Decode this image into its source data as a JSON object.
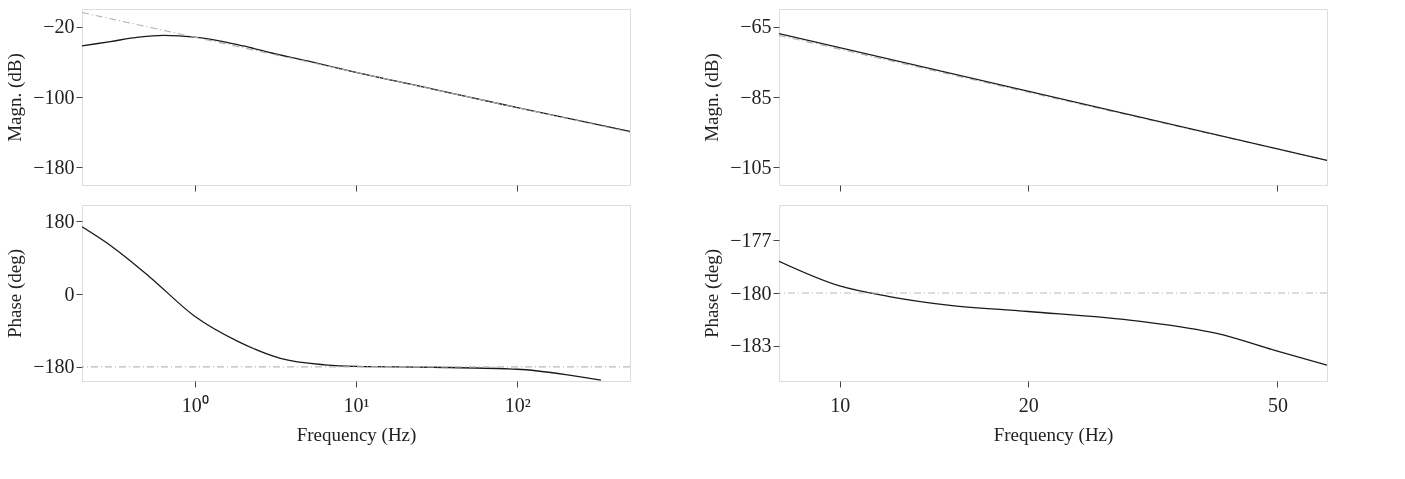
{
  "chart_data": [
    {
      "type": "line",
      "ylabel": "Magn. (dB)",
      "log": "x",
      "xlim": [
        0.2,
        500
      ],
      "xticks": [
        1,
        10,
        100
      ],
      "ylim": [
        -200,
        0
      ],
      "yticks": [
        -20,
        -100,
        -180
      ],
      "tick_labels": "y",
      "grid": false,
      "series": [
        {
          "color": "#1a1a1a",
          "line_style": "solid",
          "x": [
            0.2,
            0.3,
            0.45,
            0.64,
            1,
            1.5,
            2,
            3,
            5,
            10,
            30,
            100,
            500
          ],
          "values": [
            -42,
            -37,
            -32,
            -30,
            -32,
            -37,
            -42,
            -50,
            -59,
            -72,
            -91,
            -112,
            -139
          ]
        },
        {
          "color": "#b0b0b0",
          "line_style": "dashed",
          "x": [
            0.2,
            500
          ],
          "values": [
            -4,
            -140
          ]
        }
      ]
    },
    {
      "type": "line",
      "ylabel": "Magn. (dB)",
      "log": "x",
      "xlim": [
        8,
        60
      ],
      "xticks": [
        10,
        20,
        50
      ],
      "ylim": [
        -110,
        -60
      ],
      "yticks": [
        -65,
        -85,
        -105
      ],
      "tick_labels": "y",
      "grid": false,
      "series": [
        {
          "color": "#b0b0b0",
          "line_style": "dashed",
          "x": [
            8,
            60
          ],
          "values": [
            -67.5,
            -103
          ]
        },
        {
          "color": "#1a1a1a",
          "line_style": "solid",
          "x": [
            8,
            60
          ],
          "values": [
            -67,
            -103
          ]
        }
      ]
    },
    {
      "type": "line",
      "xlabel": "Frequency (Hz)",
      "ylabel": "Phase (deg)",
      "log": "x",
      "xlim": [
        0.2,
        500
      ],
      "xticks": [
        {
          "value": 1,
          "label": "10⁰"
        },
        {
          "value": 10,
          "label": "10¹"
        },
        {
          "value": 100,
          "label": "10²"
        }
      ],
      "ylim": [
        -215,
        220
      ],
      "yticks": [
        180,
        0,
        -180
      ],
      "grid": false,
      "ref_lines": [
        {
          "axis": "y",
          "value": -180,
          "color": "#bbbbbb",
          "line_style": "dashed"
        }
      ],
      "series": [
        {
          "color": "#1a1a1a",
          "line_style": "solid",
          "x": [
            0.2,
            0.3,
            0.53,
            1,
            1.85,
            3.4,
            6.4,
            10,
            30,
            100,
            200,
            330
          ],
          "values": [
            166,
            120,
            41,
            -55,
            -117,
            -159,
            -175,
            -179,
            -181,
            -186,
            -199,
            -213
          ]
        }
      ]
    },
    {
      "type": "line",
      "xlabel": "Frequency (Hz)",
      "ylabel": "Phase (deg)",
      "log": "x",
      "xlim": [
        8,
        60
      ],
      "xticks": [
        10,
        20,
        50
      ],
      "ylim": [
        -185,
        -175
      ],
      "yticks": [
        -177,
        -180,
        -183
      ],
      "grid": false,
      "ref_lines": [
        {
          "axis": "y",
          "value": -180,
          "color": "#bbbbbb",
          "line_style": "dashed"
        }
      ],
      "series": [
        {
          "color": "#1a1a1a",
          "line_style": "solid",
          "x": [
            8,
            10,
            12,
            15,
            20,
            30,
            40,
            50,
            60
          ],
          "values": [
            -178.2,
            -179.6,
            -180.2,
            -180.7,
            -181.05,
            -181.6,
            -182.3,
            -183.3,
            -184.1
          ]
        }
      ]
    }
  ]
}
